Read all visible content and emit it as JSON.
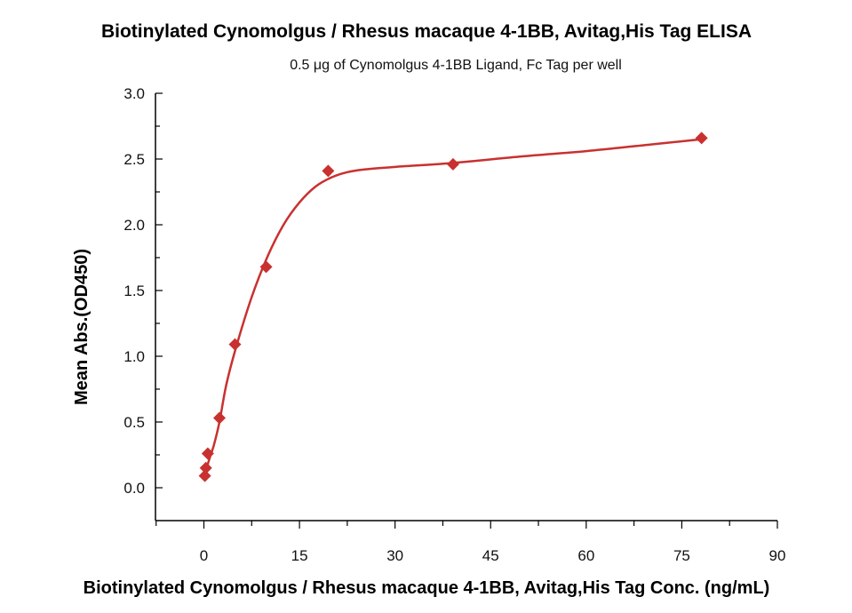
{
  "chart_data": {
    "type": "scatter",
    "title": "Biotinylated Cynomolgus / Rhesus macaque 4-1BB, Avitag,His Tag ELISA",
    "subtitle": "0.5 μg of Cynomolgus 4-1BB Ligand, Fc Tag per well",
    "xlabel": "Biotinylated Cynomolgus / Rhesus macaque 4-1BB, Avitag,His Tag Conc. (ng/mL)",
    "ylabel": "Mean Abs.(OD450)",
    "xlim": [
      -7.6,
      90
    ],
    "ylim": [
      -0.25,
      3.0
    ],
    "xticks": [
      "0",
      "15",
      "30",
      "45",
      "60",
      "75",
      "90"
    ],
    "xtick_values": [
      0,
      15,
      30,
      45,
      60,
      75,
      90
    ],
    "yticks": [
      "0.0",
      "0.5",
      "1.0",
      "1.5",
      "2.0",
      "2.5",
      "3.0"
    ],
    "ytick_values": [
      0,
      0.5,
      1.0,
      1.5,
      2.0,
      2.5,
      3.0
    ],
    "grid": false,
    "color": "#c8312f",
    "points": [
      {
        "x": 0.15,
        "y": 0.09
      },
      {
        "x": 0.31,
        "y": 0.15
      },
      {
        "x": 0.61,
        "y": 0.26
      },
      {
        "x": 2.44,
        "y": 0.53
      },
      {
        "x": 4.88,
        "y": 1.09
      },
      {
        "x": 9.77,
        "y": 1.68
      },
      {
        "x": 19.5,
        "y": 2.41
      },
      {
        "x": 39.1,
        "y": 2.46
      },
      {
        "x": 78.1,
        "y": 2.66
      }
    ],
    "fit_curve": [
      [
        0.1,
        0.07
      ],
      [
        0.5,
        0.16
      ],
      [
        1,
        0.24
      ],
      [
        1.6,
        0.33
      ],
      [
        2.44,
        0.5
      ],
      [
        3.5,
        0.78
      ],
      [
        5,
        1.06
      ],
      [
        7.5,
        1.45
      ],
      [
        10,
        1.76
      ],
      [
        12.5,
        2.0
      ],
      [
        15,
        2.17
      ],
      [
        17.5,
        2.29
      ],
      [
        20,
        2.36
      ],
      [
        22.5,
        2.4
      ],
      [
        25,
        2.42
      ],
      [
        30,
        2.44
      ],
      [
        39,
        2.47
      ],
      [
        50,
        2.52
      ],
      [
        60,
        2.56
      ],
      [
        70,
        2.61
      ],
      [
        78.1,
        2.65
      ]
    ]
  }
}
